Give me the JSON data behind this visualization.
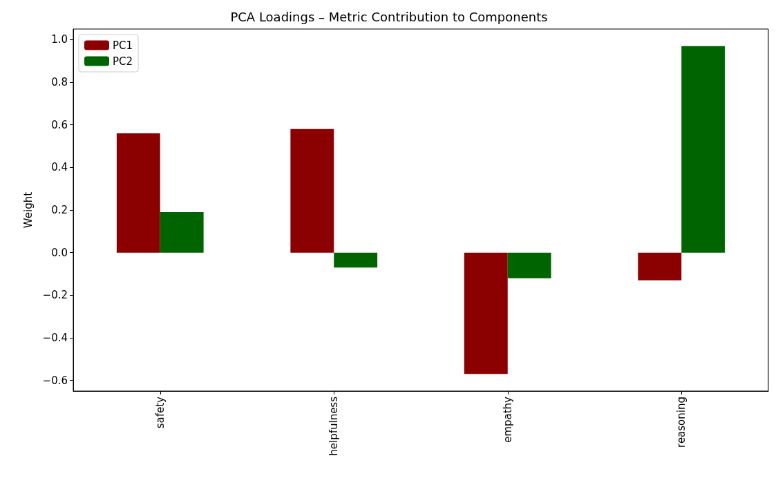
{
  "chart_data": {
    "type": "bar",
    "title": "PCA Loadings – Metric Contribution to Components",
    "ylabel": "Weight",
    "categories": [
      "safety",
      "helpfulness",
      "empathy",
      "reasoning"
    ],
    "series": [
      {
        "name": "PC1",
        "color": "#8b0000",
        "values": [
          0.56,
          0.58,
          -0.57,
          -0.13
        ]
      },
      {
        "name": "PC2",
        "color": "#006400",
        "values": [
          0.19,
          -0.07,
          -0.12,
          0.97
        ]
      }
    ],
    "ylim": [
      -0.65,
      1.05
    ],
    "yticks": [
      {
        "value": -0.6,
        "label": "−0.6"
      },
      {
        "value": -0.4,
        "label": "−0.4"
      },
      {
        "value": -0.2,
        "label": "−0.2"
      },
      {
        "value": 0,
        "label": "0.0"
      },
      {
        "value": 0.2,
        "label": "0.2"
      },
      {
        "value": 0.4,
        "label": "0.4"
      },
      {
        "value": 0.6,
        "label": "0.6"
      },
      {
        "value": 0.8,
        "label": "0.8"
      },
      {
        "value": 1,
        "label": "1.0"
      }
    ],
    "grid": false,
    "legend": "top left"
  }
}
